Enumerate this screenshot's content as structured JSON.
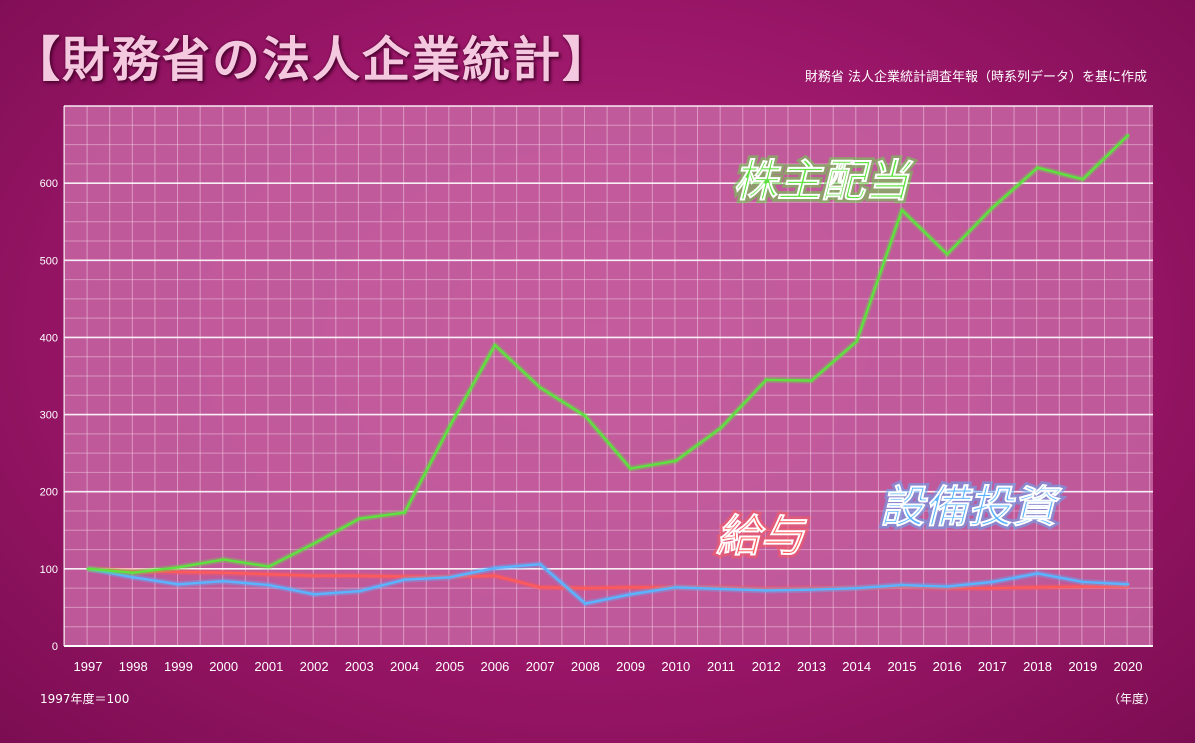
{
  "page": {
    "title": "【財務省の法人企業統計】",
    "source": "財務省 法人企業統計調査年報（時系列データ）を基に作成",
    "baseline_note": "1997年度＝100",
    "x_unit": "（年度）"
  },
  "colors": {
    "background": "#9a1668",
    "plot_area": "#c765a3",
    "grid": "#f3cfe4",
    "dividends": "#5fe23f",
    "salary": "#ff5a5a",
    "capex": "#5ab4ff"
  },
  "chart_data": {
    "type": "line",
    "title": "",
    "xlabel": "（年度）",
    "ylabel": "",
    "ylim": [
      0,
      700
    ],
    "yticks": [
      0,
      100,
      200,
      300,
      400,
      500,
      600
    ],
    "grid": true,
    "x": [
      "1997",
      "1998",
      "1999",
      "2000",
      "2001",
      "2002",
      "2003",
      "2004",
      "2005",
      "2006",
      "2007",
      "2008",
      "2009",
      "2010",
      "2011",
      "2012",
      "2013",
      "2014",
      "2015",
      "2016",
      "2017",
      "2018",
      "2019",
      "2020"
    ],
    "series": [
      {
        "name": "株主配当",
        "color": "#5fe23f",
        "values": [
          100,
          95,
          102,
          112,
          103,
          133,
          165,
          173,
          285,
          390,
          335,
          298,
          230,
          240,
          283,
          345,
          344,
          395,
          565,
          508,
          568,
          620,
          605,
          662
        ]
      },
      {
        "name": "給与",
        "color": "#ff5a5a",
        "values": [
          100,
          97,
          96,
          95,
          93,
          91,
          91,
          90,
          90,
          91,
          76,
          75,
          76,
          76,
          76,
          74,
          75,
          75,
          77,
          75,
          75,
          76,
          77,
          77
        ]
      },
      {
        "name": "設備投資",
        "color": "#5ab4ff",
        "values": [
          100,
          89,
          80,
          84,
          79,
          67,
          71,
          86,
          89,
          101,
          106,
          55,
          67,
          76,
          74,
          72,
          73,
          75,
          79,
          77,
          83,
          94,
          83,
          80
        ]
      }
    ]
  }
}
